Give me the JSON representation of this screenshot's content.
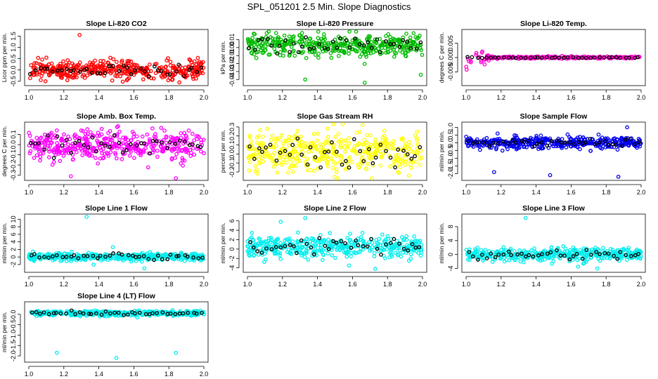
{
  "figure_title": "SPL_051201  2.5 Min. Slope Diagnostics",
  "chart_data": [
    {
      "id": "co2",
      "type": "scatter",
      "title": "Slope Li-820 CO2",
      "xlabel": "",
      "ylabel": "Licor ppm per min.",
      "xlim": [
        1.0,
        2.0
      ],
      "ylim": [
        -0.6,
        1.7
      ],
      "xticks": [
        1.0,
        1.2,
        1.4,
        1.6,
        1.8,
        2.0
      ],
      "yticks": [
        -0.5,
        0.0,
        0.5,
        1.0,
        1.5
      ],
      "ytick_labels": [
        "-0.5",
        "0.0",
        "0.5",
        "1.0",
        "1.5"
      ],
      "color": "#ff0000",
      "center": 0.0,
      "spread": 0.2,
      "n": 420,
      "outliers": [
        [
          1.29,
          1.55
        ],
        [
          1.22,
          -0.45
        ],
        [
          1.56,
          -0.45
        ],
        [
          1.86,
          -0.55
        ]
      ]
    },
    {
      "id": "pressure",
      "type": "scatter",
      "title": "Slope Li-820 Pressure",
      "xlabel": "",
      "ylabel": "kPa per min.",
      "xlim": [
        1.0,
        2.0
      ],
      "ylim": [
        -0.045,
        0.02
      ],
      "xticks": [
        1.0,
        1.2,
        1.4,
        1.6,
        1.8,
        2.0
      ],
      "yticks": [
        -0.04,
        -0.03,
        -0.02,
        -0.01,
        0.0,
        0.01
      ],
      "ytick_labels": [
        "-0.04",
        "-0.03",
        "-0.02",
        "-0.01",
        "0.00",
        "0.01"
      ],
      "color": "#00bb00",
      "center": 0.003,
      "spread": 0.007,
      "n": 420,
      "outliers": [
        [
          1.33,
          -0.04
        ],
        [
          1.67,
          -0.044
        ],
        [
          1.99,
          -0.034
        ]
      ]
    },
    {
      "id": "temp",
      "type": "scatter",
      "title": "Slope Li-820 Temp.",
      "xlabel": "",
      "ylabel": "degrees C per min.",
      "xlim": [
        1.0,
        2.0
      ],
      "ylim": [
        -0.009,
        0.009
      ],
      "xticks": [
        1.0,
        1.2,
        1.4,
        1.6,
        1.8,
        2.0
      ],
      "yticks": [
        -0.005,
        0.0,
        0.005
      ],
      "ytick_labels": [
        "-0.005",
        "0.000",
        "0.005"
      ],
      "color": "#ff00cc",
      "center": 0.0,
      "spread": 0.0002,
      "n": 300,
      "decay": true,
      "outliers": []
    },
    {
      "id": "ambbox",
      "type": "scatter",
      "title": "Slope Amb. Box Temp.",
      "xlabel": "",
      "ylabel": "degrees C per min.",
      "xlim": [
        1.0,
        2.0
      ],
      "ylim": [
        -0.33,
        0.2
      ],
      "xticks": [
        1.0,
        1.2,
        1.4,
        1.6,
        1.8,
        2.0
      ],
      "yticks": [
        -0.3,
        -0.2,
        -0.1,
        0.0,
        0.1
      ],
      "ytick_labels": [
        "-0.3",
        "-0.2",
        "-0.1",
        "0.0",
        "0.1"
      ],
      "color": "#ff00ff",
      "center": 0.0,
      "spread": 0.07,
      "n": 420,
      "outliers": [
        [
          1.24,
          -0.31
        ],
        [
          1.84,
          -0.33
        ],
        [
          1.51,
          0.18
        ]
      ]
    },
    {
      "id": "gasrh",
      "type": "scatter",
      "title": "Slope Gas Stream RH",
      "xlabel": "",
      "ylabel": "percent per min.",
      "xlim": [
        1.0,
        2.0
      ],
      "ylim": [
        -0.27,
        0.33
      ],
      "xticks": [
        1.0,
        1.2,
        1.4,
        1.6,
        1.8,
        2.0
      ],
      "yticks": [
        -0.2,
        -0.1,
        0.0,
        0.1,
        0.2,
        0.3
      ],
      "ytick_labels": [
        "-0.2",
        "-0.1",
        "0.0",
        "0.1",
        "0.2",
        "0.3"
      ],
      "color": "#ffff00",
      "center": 0.02,
      "spread": 0.12,
      "n": 420,
      "outliers": []
    },
    {
      "id": "sampleflow",
      "type": "scatter",
      "title": "Slope Sample Flow",
      "xlabel": "",
      "ylabel": "ml/min per min.",
      "xlim": [
        1.0,
        2.0
      ],
      "ylim": [
        -2.3,
        1.2
      ],
      "xticks": [
        1.0,
        1.2,
        1.4,
        1.6,
        1.8,
        2.0
      ],
      "yticks": [
        -2.0,
        -1.5,
        -1.0,
        -0.5,
        0.0,
        0.5,
        1.0
      ],
      "ytick_labels": [
        "-2.0",
        "-1.5",
        "-1.0",
        "-0.5",
        "0.0",
        "0.5",
        "1.0"
      ],
      "color": "#0000ee",
      "center": 0.0,
      "spread": 0.18,
      "n": 420,
      "outliers": [
        [
          1.16,
          -1.9
        ],
        [
          1.48,
          -2.1
        ],
        [
          1.87,
          -2.2
        ],
        [
          1.92,
          1.0
        ],
        [
          1.18,
          0.6
        ]
      ]
    },
    {
      "id": "line1",
      "type": "scatter",
      "title": "Slope Line 1 Flow",
      "xlabel": "",
      "ylabel": "ml/min per min.",
      "xlim": [
        1.0,
        2.0
      ],
      "ylim": [
        -3.5,
        10.8
      ],
      "xticks": [
        1.0,
        1.2,
        1.4,
        1.6,
        1.8,
        2.0
      ],
      "yticks": [
        -2,
        0,
        2,
        4,
        6,
        8,
        10
      ],
      "ytick_labels": [
        "-2",
        "0",
        "2",
        "4",
        "6",
        "8",
        "10"
      ],
      "color": "#00eeee",
      "center": 0.0,
      "spread": 0.5,
      "n": 420,
      "outliers": [
        [
          1.33,
          10.6
        ],
        [
          1.66,
          -3.0
        ],
        [
          1.37,
          -2.0
        ],
        [
          1.48,
          2.6
        ]
      ]
    },
    {
      "id": "line2",
      "type": "scatter",
      "title": "Slope Line 2 Flow",
      "xlabel": "",
      "ylabel": "ml/min per min.",
      "xlim": [
        1.0,
        2.0
      ],
      "ylim": [
        -4.5,
        7.0
      ],
      "xticks": [
        1.0,
        1.2,
        1.4,
        1.6,
        1.8,
        2.0
      ],
      "yticks": [
        -4,
        -2,
        0,
        2,
        4,
        6
      ],
      "ytick_labels": [
        "-4",
        "-2",
        "0",
        "2",
        "4",
        "6"
      ],
      "color": "#00eeee",
      "center": 0.5,
      "spread": 1.1,
      "n": 420,
      "outliers": [
        [
          1.19,
          5.8
        ],
        [
          1.33,
          6.6
        ],
        [
          1.73,
          -4.2
        ],
        [
          1.58,
          -3.5
        ]
      ]
    },
    {
      "id": "line3",
      "type": "scatter",
      "title": "Slope Line 3 Flow",
      "xlabel": "",
      "ylabel": "ml/min per min.",
      "xlim": [
        1.0,
        2.0
      ],
      "ylim": [
        -4.5,
        11.0
      ],
      "xticks": [
        1.0,
        1.2,
        1.4,
        1.6,
        1.8,
        2.0
      ],
      "yticks": [
        -4,
        0,
        4,
        8
      ],
      "ytick_labels": [
        "-4",
        "0",
        "4",
        "8"
      ],
      "color": "#00eeee",
      "center": 0.0,
      "spread": 0.9,
      "n": 420,
      "outliers": [
        [
          1.34,
          10.5
        ],
        [
          1.75,
          -4.0
        ],
        [
          1.64,
          -3.5
        ]
      ]
    },
    {
      "id": "line4",
      "type": "scatter",
      "title": "Slope Line 4 (LT) Flow",
      "xlabel": "",
      "ylabel": "ml/min per min.",
      "xlim": [
        1.0,
        2.0
      ],
      "ylim": [
        -2.2,
        0.5
      ],
      "xticks": [
        1.0,
        1.2,
        1.4,
        1.6,
        1.8,
        2.0
      ],
      "yticks": [
        -2.0,
        -1.5,
        -1.0,
        -0.5,
        0.0
      ],
      "ytick_labels": [
        "-2.0",
        "-1.5",
        "-1.0",
        "-0.5",
        "0.0"
      ],
      "color": "#00eeee",
      "center": 0.05,
      "spread": 0.06,
      "n": 420,
      "outliers": [
        [
          1.16,
          -1.85
        ],
        [
          1.5,
          -2.1
        ],
        [
          1.84,
          -1.85
        ]
      ]
    }
  ]
}
